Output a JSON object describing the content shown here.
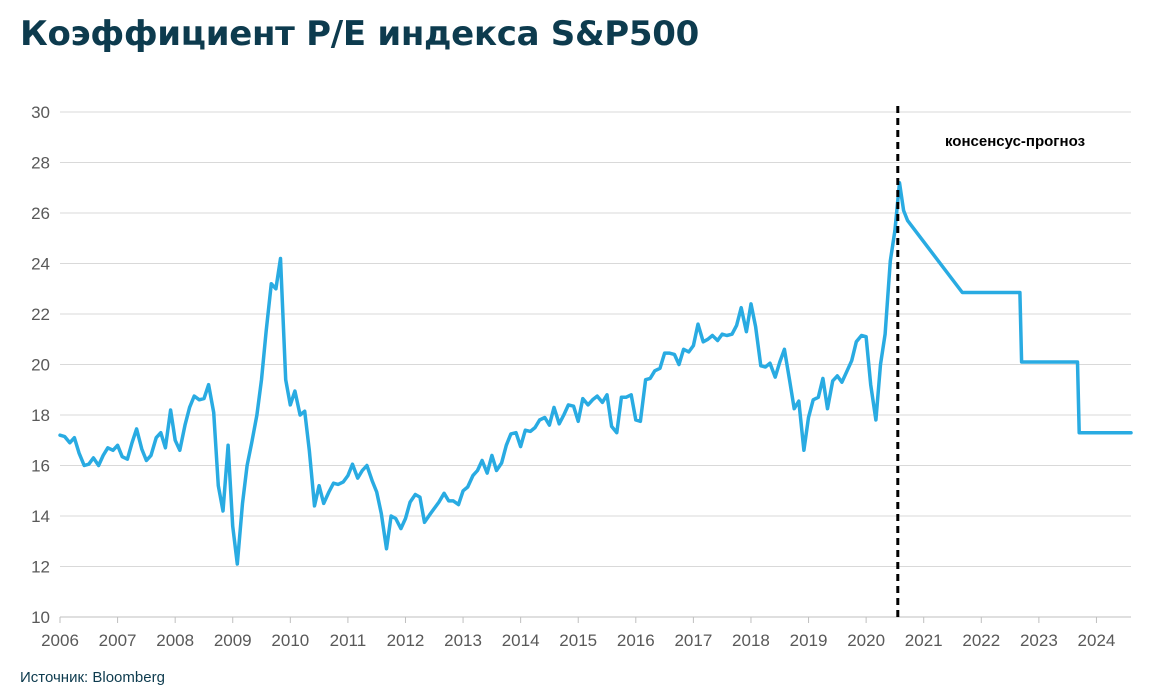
{
  "title": "Коэффициент P/E индекса S&P500",
  "source": "Источник: Bloomberg",
  "colors": {
    "line": "#29abe2",
    "grid": "#d9d9d9",
    "title": "#0d3b4e",
    "axis_text": "#595959",
    "marker": "#000000"
  },
  "chart_data": {
    "type": "line",
    "title": "Коэффициент P/E индекса S&P500",
    "xlabel": "",
    "ylabel": "",
    "xlim": [
      2006,
      2024.6
    ],
    "ylim": [
      10,
      30
    ],
    "y_ticks": [
      10,
      12,
      14,
      16,
      18,
      20,
      22,
      24,
      26,
      28,
      30
    ],
    "x_ticks": [
      2006,
      2007,
      2008,
      2009,
      2010,
      2011,
      2012,
      2013,
      2014,
      2015,
      2016,
      2017,
      2018,
      2019,
      2020,
      2021,
      2022,
      2023,
      2024
    ],
    "x_tick_labels": [
      "2006",
      "2007",
      "2008",
      "2009",
      "2010",
      "2011",
      "2012",
      "2013",
      "2014",
      "2015",
      "2016",
      "2017",
      "2018",
      "2019",
      "2020",
      "2021",
      "2022",
      "2023",
      "2024"
    ],
    "grid": "horizontal",
    "legend": "none",
    "forecast_marker": {
      "x": 2020.55,
      "style": "dashed",
      "label": "консенсус-прогноз"
    },
    "series": [
      {
        "x": [
          2006.0,
          2006.08,
          2006.17,
          2006.25,
          2006.33,
          2006.42,
          2006.5,
          2006.58,
          2006.67,
          2006.75,
          2006.83,
          2006.92,
          2007.0,
          2007.08,
          2007.17,
          2007.25,
          2007.33,
          2007.42,
          2007.5,
          2007.58,
          2007.67,
          2007.75,
          2007.83,
          2007.92,
          2008.0,
          2008.08,
          2008.17,
          2008.25,
          2008.33,
          2008.42,
          2008.5,
          2008.58,
          2008.67,
          2008.75,
          2008.83,
          2008.92,
          2009.0,
          2009.08,
          2009.17,
          2009.25,
          2009.33,
          2009.42,
          2009.5,
          2009.58,
          2009.67,
          2009.75,
          2009.83,
          2009.92,
          2010.0,
          2010.08,
          2010.17,
          2010.25,
          2010.33,
          2010.42,
          2010.5,
          2010.58,
          2010.67,
          2010.75,
          2010.83,
          2010.92,
          2011.0,
          2011.08,
          2011.17,
          2011.25,
          2011.33,
          2011.42,
          2011.5,
          2011.58,
          2011.67,
          2011.75,
          2011.83,
          2011.92,
          2012.0,
          2012.08,
          2012.17,
          2012.25,
          2012.33,
          2012.42,
          2012.5,
          2012.58,
          2012.67,
          2012.75,
          2012.83,
          2012.92,
          2013.0,
          2013.08,
          2013.17,
          2013.25,
          2013.33,
          2013.42,
          2013.5,
          2013.58,
          2013.67,
          2013.75,
          2013.83,
          2013.92,
          2014.0,
          2014.08,
          2014.17,
          2014.25,
          2014.33,
          2014.42,
          2014.5,
          2014.58,
          2014.67,
          2014.75,
          2014.83,
          2014.92,
          2015.0,
          2015.08,
          2015.17,
          2015.25,
          2015.33,
          2015.42,
          2015.5,
          2015.58,
          2015.67,
          2015.75,
          2015.83,
          2015.92,
          2016.0,
          2016.08,
          2016.17,
          2016.25,
          2016.33,
          2016.42,
          2016.5,
          2016.58,
          2016.67,
          2016.75,
          2016.83,
          2016.92,
          2017.0,
          2017.08,
          2017.17,
          2017.25,
          2017.33,
          2017.42,
          2017.5,
          2017.58,
          2017.67,
          2017.75,
          2017.83,
          2017.92,
          2018.0,
          2018.08,
          2018.17,
          2018.25,
          2018.33,
          2018.42,
          2018.5,
          2018.58,
          2018.67,
          2018.75,
          2018.83,
          2018.92,
          2019.0,
          2019.08,
          2019.17,
          2019.25,
          2019.33,
          2019.42,
          2019.5,
          2019.58,
          2019.67,
          2019.75,
          2019.83,
          2019.92,
          2020.0,
          2020.08,
          2020.17,
          2020.25,
          2020.33,
          2020.42,
          2020.5,
          2020.58,
          2020.65,
          2020.72,
          2021.67,
          2022.67,
          2022.7,
          2023.67,
          2023.7,
          2024.6
        ],
        "y": [
          17.2,
          17.15,
          16.9,
          17.1,
          16.5,
          16.0,
          16.05,
          16.3,
          16.0,
          16.4,
          16.7,
          16.6,
          16.8,
          16.35,
          16.25,
          16.9,
          17.45,
          16.65,
          16.2,
          16.4,
          17.1,
          17.3,
          16.7,
          18.2,
          17.0,
          16.6,
          17.6,
          18.3,
          18.75,
          18.6,
          18.65,
          19.2,
          18.1,
          15.2,
          14.2,
          16.8,
          13.6,
          12.1,
          14.5,
          16.0,
          16.9,
          18.0,
          19.4,
          21.3,
          23.2,
          23.0,
          24.2,
          19.4,
          18.4,
          18.95,
          18.0,
          18.15,
          16.6,
          14.4,
          15.2,
          14.5,
          14.95,
          15.3,
          15.25,
          15.35,
          15.6,
          16.05,
          15.5,
          15.8,
          16.0,
          15.4,
          14.95,
          14.1,
          12.7,
          14.0,
          13.9,
          13.5,
          13.9,
          14.55,
          14.85,
          14.75,
          13.75,
          14.05,
          14.3,
          14.55,
          14.9,
          14.6,
          14.6,
          14.45,
          15.0,
          15.15,
          15.6,
          15.8,
          16.2,
          15.7,
          16.4,
          15.8,
          16.1,
          16.8,
          17.25,
          17.3,
          16.75,
          17.4,
          17.35,
          17.5,
          17.8,
          17.9,
          17.6,
          18.3,
          17.65,
          18.0,
          18.4,
          18.35,
          17.75,
          18.65,
          18.4,
          18.6,
          18.75,
          18.5,
          18.8,
          17.55,
          17.3,
          18.7,
          18.7,
          18.8,
          17.8,
          17.75,
          19.4,
          19.45,
          19.75,
          19.85,
          20.45,
          20.45,
          20.4,
          20.0,
          20.6,
          20.5,
          20.75,
          21.6,
          20.9,
          21.0,
          21.15,
          20.95,
          21.2,
          21.15,
          21.2,
          21.55,
          22.25,
          21.3,
          22.4,
          21.5,
          19.95,
          19.9,
          20.05,
          19.5,
          20.1,
          20.6,
          19.4,
          18.25,
          18.55,
          16.6,
          17.9,
          18.6,
          18.7,
          19.45,
          18.25,
          19.35,
          19.55,
          19.3,
          19.75,
          20.15,
          20.9,
          21.15,
          21.1,
          19.2,
          17.8,
          20.0,
          21.2,
          24.1,
          25.3,
          27.2,
          26.1,
          25.7,
          22.85,
          22.85,
          20.1,
          20.1,
          17.3,
          17.3
        ]
      }
    ]
  }
}
